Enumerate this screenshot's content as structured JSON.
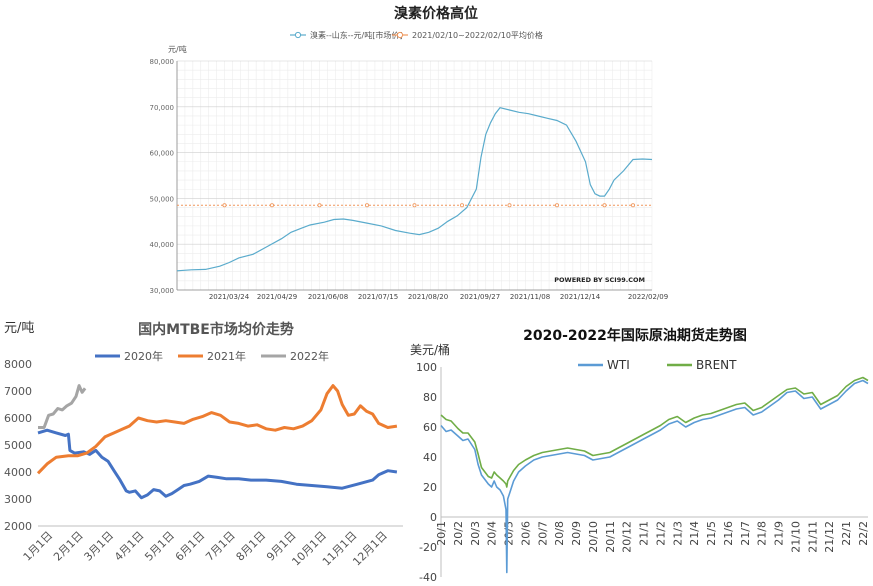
{
  "chart_data": [
    {
      "type": "line",
      "title": "溴素价格高位",
      "ylabel": "元/吨",
      "ylim": [
        30000,
        80000
      ],
      "yticks": [
        "30,000",
        "40,000",
        "50,000",
        "60,000",
        "70,000",
        "80,000"
      ],
      "categories": [
        "2021/03/24",
        "2021/04/29",
        "2021/06/08",
        "2021/07/15",
        "2021/08/20",
        "2021/09/27",
        "2021/11/08",
        "2021/12/14",
        "2022/02/09"
      ],
      "grid": true,
      "legend_position": "top-center",
      "watermark": "POWERED BY SCI99.COM",
      "colors": {
        "series": "#5aabcc",
        "average": "#f0965a"
      },
      "series": [
        {
          "name": "溴素--山东--元/吨[市场价]",
          "x": [
            0,
            0.03,
            0.06,
            0.09,
            0.11,
            0.13,
            0.16,
            0.19,
            0.22,
            0.24,
            0.26,
            0.28,
            0.31,
            0.33,
            0.35,
            0.37,
            0.4,
            0.43,
            0.46,
            0.49,
            0.51,
            0.53,
            0.55,
            0.57,
            0.59,
            0.61,
            0.63,
            0.64,
            0.65,
            0.66,
            0.67,
            0.68,
            0.7,
            0.72,
            0.74,
            0.76,
            0.78,
            0.8,
            0.82,
            0.84,
            0.86,
            0.87,
            0.88,
            0.89,
            0.9,
            0.91,
            0.92,
            0.94,
            0.96,
            0.98,
            1.0
          ],
          "values": [
            34200,
            34400,
            34500,
            35200,
            36000,
            37000,
            37800,
            39500,
            41200,
            42600,
            43400,
            44200,
            44800,
            45400,
            45500,
            45200,
            44600,
            44000,
            43000,
            42400,
            42100,
            42600,
            43500,
            45000,
            46200,
            48000,
            52000,
            59000,
            64000,
            66500,
            68500,
            69800,
            69300,
            68800,
            68500,
            68000,
            67500,
            67000,
            66000,
            62500,
            58000,
            53000,
            51000,
            50500,
            50500,
            52000,
            54000,
            56000,
            58500,
            58600,
            58500
          ]
        },
        {
          "name": "2021/02/10~2022/02/10平均价格",
          "x": [
            0,
            1
          ],
          "values": [
            48500,
            48500
          ]
        }
      ]
    },
    {
      "type": "line",
      "title": "国内MTBE市场均价走势",
      "ylabel": "元/吨",
      "ylim": [
        2000,
        8000
      ],
      "yticks": [
        "2000",
        "3000",
        "4000",
        "5000",
        "6000",
        "7000",
        "8000"
      ],
      "categories": [
        "1月1日",
        "2月1日",
        "3月1日",
        "4月1日",
        "5月1日",
        "6月1日",
        "7月1日",
        "8月1日",
        "9月1日",
        "10月1日",
        "11月1日",
        "12月1日"
      ],
      "grid": false,
      "legend_position": "top",
      "colors": {
        "2020年": "#4472c4",
        "2021年": "#ed7d31",
        "2022年": "#a5a5a5"
      },
      "series": [
        {
          "name": "2020年",
          "x": [
            0,
            0.3,
            0.6,
            0.9,
            1.0,
            1.05,
            1.2,
            1.5,
            1.7,
            1.9,
            2.1,
            2.3,
            2.5,
            2.7,
            2.9,
            3.0,
            3.2,
            3.4,
            3.6,
            3.8,
            4.0,
            4.2,
            4.4,
            4.6,
            4.8,
            5.0,
            5.3,
            5.6,
            5.9,
            6.2,
            6.6,
            7.0,
            7.5,
            8.0,
            8.5,
            9.0,
            9.5,
            10.0,
            10.5,
            11.0,
            11.2,
            11.5,
            11.8
          ],
          "values": [
            5450,
            5550,
            5450,
            5350,
            5400,
            4800,
            4700,
            4750,
            4650,
            4800,
            4550,
            4400,
            4050,
            3700,
            3300,
            3250,
            3300,
            3050,
            3150,
            3350,
            3300,
            3100,
            3200,
            3350,
            3500,
            3550,
            3650,
            3850,
            3800,
            3750,
            3750,
            3700,
            3700,
            3650,
            3550,
            3500,
            3450,
            3400,
            3550,
            3700,
            3900,
            4050,
            4000
          ]
        },
        {
          "name": "2021年",
          "x": [
            0,
            0.3,
            0.6,
            1.0,
            1.3,
            1.6,
            1.9,
            2.2,
            2.5,
            2.8,
            3.0,
            3.3,
            3.6,
            3.9,
            4.2,
            4.5,
            4.8,
            5.1,
            5.4,
            5.7,
            6.0,
            6.3,
            6.6,
            6.9,
            7.2,
            7.5,
            7.8,
            8.1,
            8.4,
            8.7,
            9.0,
            9.3,
            9.5,
            9.7,
            9.85,
            10.0,
            10.2,
            10.4,
            10.6,
            10.8,
            11.0,
            11.2,
            11.5,
            11.8
          ],
          "values": [
            3950,
            4300,
            4550,
            4600,
            4600,
            4700,
            4950,
            5300,
            5450,
            5600,
            5700,
            6000,
            5900,
            5850,
            5900,
            5850,
            5800,
            5950,
            6050,
            6200,
            6100,
            5850,
            5800,
            5700,
            5750,
            5600,
            5550,
            5650,
            5600,
            5700,
            5900,
            6300,
            6900,
            7200,
            7000,
            6500,
            6100,
            6150,
            6450,
            6250,
            6150,
            5800,
            5650,
            5700
          ]
        },
        {
          "name": "2022年",
          "x": [
            0,
            0.2,
            0.35,
            0.5,
            0.65,
            0.8,
            0.95,
            1.1,
            1.25,
            1.35,
            1.45,
            1.55
          ],
          "values": [
            5650,
            5650,
            6100,
            6150,
            6350,
            6300,
            6450,
            6550,
            6800,
            7200,
            6950,
            7100
          ]
        }
      ]
    },
    {
      "type": "line",
      "title": "2020-2022年国际原油期货走势图",
      "ylabel": "美元/桶",
      "ylim": [
        -40,
        100
      ],
      "yticks": [
        "-40",
        "-20",
        "0",
        "20",
        "40",
        "60",
        "80",
        "100"
      ],
      "categories": [
        "20/1",
        "20/2",
        "20/3",
        "20/4",
        "20/5",
        "20/6",
        "20/7",
        "20/8",
        "20/9",
        "20/10",
        "20/11",
        "20/12",
        "21/1",
        "21/2",
        "21/3",
        "21/4",
        "21/5",
        "21/6",
        "21/7",
        "21/8",
        "21/9",
        "21/10",
        "21/11",
        "21/12",
        "22/1",
        "22/2"
      ],
      "grid": false,
      "legend_position": "top-left",
      "colors": {
        "WTI": "#5b9bd5",
        "BRENT": "#70ad47"
      },
      "series": [
        {
          "name": "WTI",
          "x": [
            0,
            0.3,
            0.6,
            1.0,
            1.3,
            1.6,
            2.0,
            2.2,
            2.4,
            2.6,
            2.8,
            3.0,
            3.15,
            3.3,
            3.5,
            3.7,
            3.85,
            3.9,
            3.95,
            4.1,
            4.3,
            4.6,
            5.0,
            5.5,
            6.0,
            6.5,
            7.0,
            7.5,
            8.0,
            8.5,
            9.0,
            9.5,
            10.0,
            10.5,
            11.0,
            11.5,
            12.0,
            12.5,
            13.0,
            13.5,
            14.0,
            14.5,
            15.0,
            15.5,
            16.0,
            16.5,
            17.0,
            17.5,
            18.0,
            18.5,
            19.0,
            19.5,
            20.0,
            20.5,
            21.0,
            21.5,
            22.0,
            22.5,
            23.0,
            23.5,
            24.0,
            24.5,
            25.0,
            25.3
          ],
          "values": [
            61,
            57,
            58,
            54,
            51,
            52,
            45,
            35,
            28,
            25,
            22,
            20,
            24,
            20,
            18,
            14,
            5,
            -37,
            12,
            17,
            24,
            30,
            34,
            38,
            40,
            41,
            42,
            43,
            42,
            41,
            38,
            39,
            40,
            43,
            46,
            49,
            52,
            55,
            58,
            62,
            64,
            60,
            63,
            65,
            66,
            68,
            70,
            72,
            73,
            68,
            70,
            74,
            78,
            83,
            84,
            79,
            80,
            72,
            75,
            78,
            84,
            89,
            91,
            89
          ]
        },
        {
          "name": "BRENT",
          "x": [
            0,
            0.3,
            0.6,
            1.0,
            1.3,
            1.6,
            2.0,
            2.2,
            2.4,
            2.6,
            2.8,
            3.0,
            3.15,
            3.3,
            3.5,
            3.7,
            3.85,
            3.9,
            3.95,
            4.1,
            4.3,
            4.6,
            5.0,
            5.5,
            6.0,
            6.5,
            7.0,
            7.5,
            8.0,
            8.5,
            9.0,
            9.5,
            10.0,
            10.5,
            11.0,
            11.5,
            12.0,
            12.5,
            13.0,
            13.5,
            14.0,
            14.5,
            15.0,
            15.5,
            16.0,
            16.5,
            17.0,
            17.5,
            18.0,
            18.5,
            19.0,
            19.5,
            20.0,
            20.5,
            21.0,
            21.5,
            22.0,
            22.5,
            23.0,
            23.5,
            24.0,
            24.5,
            25.0,
            25.3
          ],
          "values": [
            68,
            65,
            64,
            59,
            56,
            56,
            50,
            42,
            33,
            30,
            27,
            26,
            30,
            28,
            26,
            24,
            22,
            20,
            24,
            27,
            31,
            35,
            38,
            41,
            43,
            44,
            45,
            46,
            45,
            44,
            41,
            42,
            43,
            46,
            49,
            52,
            55,
            58,
            61,
            65,
            67,
            63,
            66,
            68,
            69,
            71,
            73,
            75,
            76,
            71,
            73,
            77,
            81,
            85,
            86,
            82,
            83,
            75,
            78,
            81,
            87,
            91,
            93,
            91
          ]
        }
      ]
    }
  ]
}
